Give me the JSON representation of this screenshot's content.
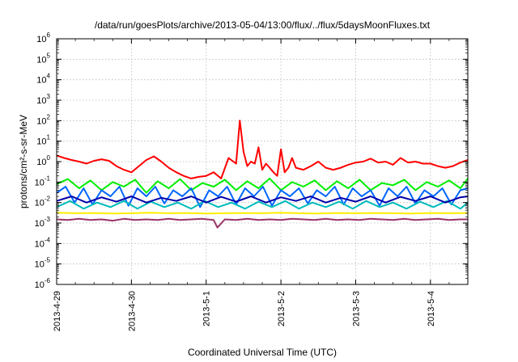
{
  "chart_data": {
    "type": "line",
    "title": "/data/run/goesPlots/archive/2013-05-04/13:00/flux/../flux/5daysMoonFluxes.txt",
    "xlabel": "Coordinated Universal Time (UTC)",
    "ylabel": "protons/cm²-s-sr-MeV",
    "yscale": "log",
    "ylim": [
      1e-06,
      1000000.0
    ],
    "xlim": [
      "2013-04-29 00:00",
      "2013-05-04 12:00"
    ],
    "xticks": [
      "2013-4-29",
      "2013-4-30",
      "2013-5-1",
      "2013-5-2",
      "2013-5-3",
      "2013-5-4"
    ],
    "ytick_exponents": [
      -6,
      -5,
      -4,
      -3,
      -2,
      -1,
      0,
      1,
      2,
      3,
      4,
      5,
      6
    ],
    "ytick_base": "10",
    "grid": true,
    "x_days_offset_points": [
      0,
      0.25,
      0.5,
      0.75,
      1.0,
      1.25,
      1.5,
      1.75,
      2.0,
      2.25,
      2.5,
      2.75,
      3.0,
      3.25,
      3.5,
      3.75,
      4.0,
      4.25,
      4.5,
      4.75,
      5.0,
      5.25,
      5.5
    ],
    "series": [
      {
        "color": "#ff0000",
        "x": [
          0,
          0.1,
          0.2,
          0.3,
          0.4,
          0.5,
          0.6,
          0.7,
          0.8,
          0.9,
          1.0,
          1.1,
          1.2,
          1.3,
          1.4,
          1.5,
          1.6,
          1.7,
          1.8,
          1.9,
          2.0,
          2.1,
          2.2,
          2.3,
          2.4,
          2.45,
          2.5,
          2.55,
          2.6,
          2.65,
          2.7,
          2.75,
          2.8,
          2.85,
          2.9,
          2.95,
          3.0,
          3.05,
          3.1,
          3.15,
          3.2,
          3.3,
          3.4,
          3.5,
          3.6,
          3.7,
          3.8,
          3.9,
          4.0,
          4.1,
          4.2,
          4.3,
          4.4,
          4.5,
          4.6,
          4.7,
          4.8,
          4.9,
          5.0,
          5.1,
          5.2,
          5.3,
          5.4,
          5.5
        ],
        "y": [
          2.0,
          1.5,
          1.2,
          1.0,
          0.8,
          1.1,
          1.3,
          1.1,
          0.6,
          0.4,
          0.3,
          0.6,
          1.2,
          1.8,
          1.0,
          0.5,
          0.3,
          0.2,
          0.15,
          0.18,
          0.2,
          0.3,
          0.15,
          1.5,
          0.8,
          100,
          3,
          0.6,
          1.0,
          0.8,
          5,
          0.4,
          0.8,
          0.5,
          0.3,
          0.2,
          4,
          0.3,
          0.5,
          1.5,
          0.5,
          0.4,
          0.6,
          1.0,
          0.5,
          0.4,
          0.5,
          0.7,
          0.9,
          1.0,
          1.4,
          0.9,
          1.0,
          0.7,
          1.5,
          0.9,
          1.0,
          0.8,
          0.8,
          0.6,
          0.5,
          0.6,
          0.9,
          1.2
        ]
      },
      {
        "color": "#00ee00",
        "x": [
          0,
          0.15,
          0.3,
          0.45,
          0.6,
          0.75,
          0.9,
          1.05,
          1.2,
          1.35,
          1.5,
          1.65,
          1.8,
          1.95,
          2.1,
          2.25,
          2.4,
          2.55,
          2.7,
          2.85,
          3.0,
          3.15,
          3.3,
          3.45,
          3.6,
          3.75,
          3.9,
          4.05,
          4.2,
          4.35,
          4.5,
          4.65,
          4.8,
          4.95,
          5.1,
          5.25,
          5.4,
          5.5
        ],
        "y": [
          0.08,
          0.14,
          0.05,
          0.12,
          0.04,
          0.1,
          0.06,
          0.13,
          0.03,
          0.11,
          0.05,
          0.14,
          0.04,
          0.09,
          0.06,
          0.13,
          0.04,
          0.11,
          0.05,
          0.15,
          0.04,
          0.1,
          0.06,
          0.12,
          0.04,
          0.11,
          0.05,
          0.13,
          0.04,
          0.09,
          0.07,
          0.13,
          0.04,
          0.1,
          0.06,
          0.12,
          0.05,
          0.15
        ]
      },
      {
        "color": "#0066ff",
        "x": [
          0,
          0.12,
          0.24,
          0.36,
          0.48,
          0.6,
          0.72,
          0.84,
          0.96,
          1.08,
          1.2,
          1.32,
          1.44,
          1.56,
          1.68,
          1.8,
          1.92,
          2.04,
          2.16,
          2.28,
          2.4,
          2.52,
          2.64,
          2.76,
          2.88,
          3.0,
          3.12,
          3.24,
          3.36,
          3.48,
          3.6,
          3.72,
          3.84,
          3.96,
          4.08,
          4.2,
          4.32,
          4.44,
          4.56,
          4.68,
          4.8,
          4.92,
          5.04,
          5.16,
          5.28,
          5.4,
          5.5
        ],
        "y": [
          0.03,
          0.06,
          0.01,
          0.05,
          0.008,
          0.04,
          0.02,
          0.06,
          0.007,
          0.05,
          0.02,
          0.06,
          0.009,
          0.04,
          0.02,
          0.05,
          0.006,
          0.04,
          0.02,
          0.06,
          0.008,
          0.05,
          0.02,
          0.06,
          0.007,
          0.04,
          0.02,
          0.05,
          0.009,
          0.04,
          0.02,
          0.06,
          0.008,
          0.05,
          0.02,
          0.04,
          0.007,
          0.05,
          0.02,
          0.06,
          0.009,
          0.04,
          0.02,
          0.05,
          0.008,
          0.04,
          0.05
        ]
      },
      {
        "color": "#00bbbb",
        "x": [
          0,
          0.18,
          0.36,
          0.54,
          0.72,
          0.9,
          1.08,
          1.26,
          1.44,
          1.62,
          1.8,
          1.98,
          2.16,
          2.34,
          2.52,
          2.7,
          2.88,
          3.06,
          3.24,
          3.42,
          3.6,
          3.78,
          3.96,
          4.14,
          4.32,
          4.5,
          4.68,
          4.86,
          5.04,
          5.22,
          5.4,
          5.5
        ],
        "y": [
          0.006,
          0.012,
          0.005,
          0.01,
          0.006,
          0.012,
          0.005,
          0.011,
          0.006,
          0.01,
          0.005,
          0.012,
          0.006,
          0.01,
          0.005,
          0.011,
          0.006,
          0.012,
          0.005,
          0.01,
          0.006,
          0.011,
          0.005,
          0.012,
          0.006,
          0.01,
          0.005,
          0.011,
          0.006,
          0.012,
          0.005,
          0.01
        ]
      },
      {
        "color": "#0000aa",
        "x": [
          0,
          0.2,
          0.4,
          0.6,
          0.8,
          1.0,
          1.2,
          1.4,
          1.6,
          1.8,
          2.0,
          2.2,
          2.4,
          2.6,
          2.8,
          3.0,
          3.2,
          3.4,
          3.6,
          3.8,
          4.0,
          4.2,
          4.4,
          4.6,
          4.8,
          5.0,
          5.2,
          5.4,
          5.5
        ],
        "y": [
          0.012,
          0.02,
          0.01,
          0.018,
          0.011,
          0.02,
          0.01,
          0.017,
          0.012,
          0.02,
          0.01,
          0.019,
          0.011,
          0.02,
          0.01,
          0.018,
          0.012,
          0.02,
          0.01,
          0.017,
          0.011,
          0.02,
          0.01,
          0.019,
          0.012,
          0.02,
          0.01,
          0.018,
          0.02
        ]
      },
      {
        "color": "#ffee00",
        "x": [
          0,
          0.25,
          0.5,
          0.75,
          1.0,
          1.25,
          1.5,
          1.75,
          2.0,
          2.25,
          2.5,
          2.75,
          3.0,
          3.25,
          3.5,
          3.75,
          4.0,
          4.25,
          4.5,
          4.75,
          5.0,
          5.25,
          5.5
        ],
        "y": [
          0.0032,
          0.003,
          0.0031,
          0.0029,
          0.003,
          0.0032,
          0.003,
          0.0031,
          0.0029,
          0.003,
          0.0031,
          0.003,
          0.0032,
          0.003,
          0.0029,
          0.0031,
          0.003,
          0.0031,
          0.003,
          0.0029,
          0.0031,
          0.003,
          0.0031
        ]
      },
      {
        "color": "#993366",
        "x": [
          0,
          0.15,
          0.3,
          0.45,
          0.6,
          0.75,
          0.9,
          1.05,
          1.2,
          1.35,
          1.5,
          1.65,
          1.8,
          1.95,
          2.1,
          2.15,
          2.25,
          2.4,
          2.55,
          2.7,
          2.85,
          3.0,
          3.15,
          3.3,
          3.45,
          3.6,
          3.75,
          3.9,
          4.05,
          4.2,
          4.35,
          4.5,
          4.65,
          4.8,
          4.95,
          5.1,
          5.25,
          5.4,
          5.5
        ],
        "y": [
          0.0015,
          0.0014,
          0.0016,
          0.0014,
          0.0015,
          0.0013,
          0.0016,
          0.0014,
          0.0015,
          0.0014,
          0.0016,
          0.0014,
          0.0015,
          0.0016,
          0.0014,
          0.0006,
          0.0015,
          0.0014,
          0.0016,
          0.0014,
          0.0015,
          0.0014,
          0.0016,
          0.0015,
          0.0014,
          0.0016,
          0.0014,
          0.0015,
          0.0014,
          0.0016,
          0.0015,
          0.0014,
          0.0016,
          0.0014,
          0.0015,
          0.0016,
          0.0014,
          0.0015,
          0.0015
        ]
      }
    ]
  }
}
